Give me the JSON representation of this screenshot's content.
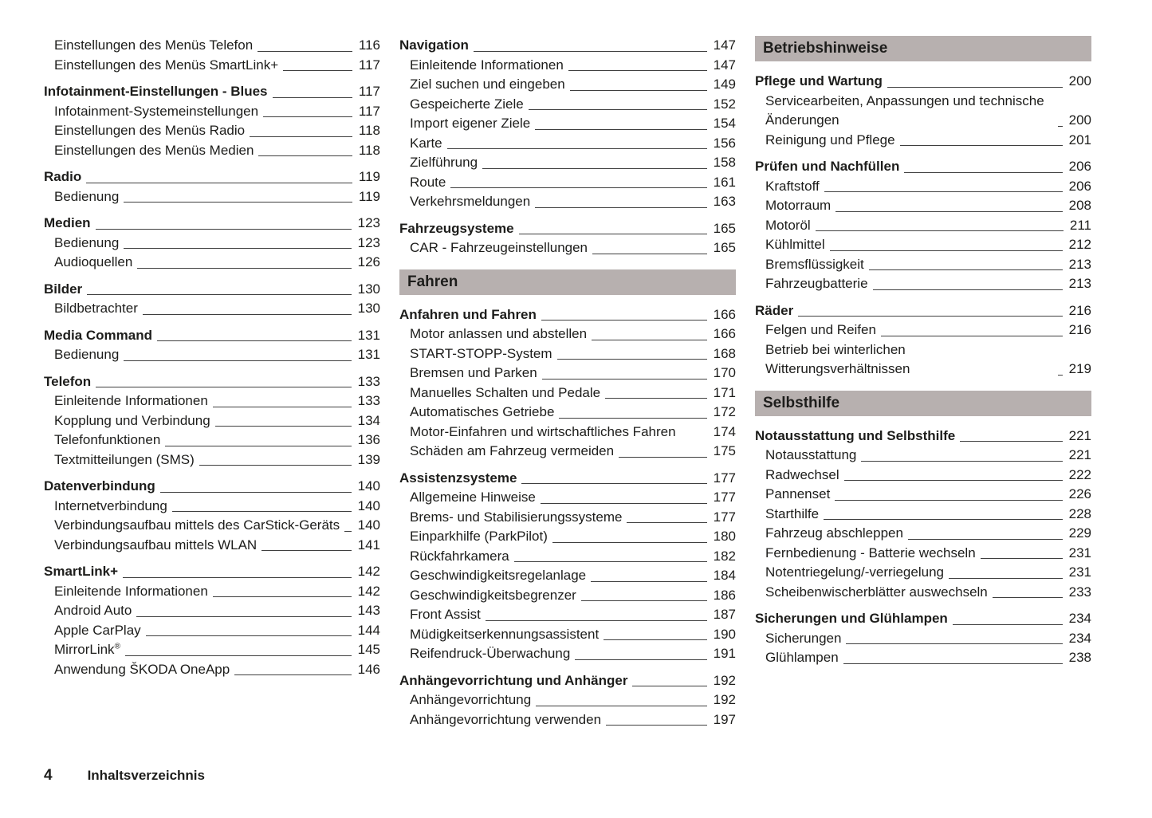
{
  "footer": {
    "page_number": "4",
    "label": "Inhaltsverzeichnis"
  },
  "colors": {
    "part_header_bg": "#b7b0af",
    "text": "#1d1d1b",
    "leader": "#3f3f3f"
  },
  "columns": [
    {
      "blocks": [
        {
          "type": "group",
          "entries": [
            {
              "level": "section",
              "label": "Einstellungen des Menüs Telefon",
              "page": "116"
            },
            {
              "level": "section",
              "label": "Einstellungen des Menüs SmartLink+",
              "page": "117"
            }
          ]
        },
        {
          "type": "group",
          "entries": [
            {
              "level": "chapter",
              "label": "Infotainment-Einstellungen - Blues",
              "page": "117"
            },
            {
              "level": "section",
              "label": "Infotainment-Systemeinstellungen",
              "page": "117"
            },
            {
              "level": "section",
              "label": "Einstellungen des Menüs Radio",
              "page": "118"
            },
            {
              "level": "section",
              "label": "Einstellungen des Menüs Medien",
              "page": "118"
            }
          ]
        },
        {
          "type": "group",
          "entries": [
            {
              "level": "chapter",
              "label": "Radio",
              "page": "119"
            },
            {
              "level": "section",
              "label": "Bedienung",
              "page": "119"
            }
          ]
        },
        {
          "type": "group",
          "entries": [
            {
              "level": "chapter",
              "label": "Medien",
              "page": "123"
            },
            {
              "level": "section",
              "label": "Bedienung",
              "page": "123"
            },
            {
              "level": "section",
              "label": "Audioquellen",
              "page": "126"
            }
          ]
        },
        {
          "type": "group",
          "entries": [
            {
              "level": "chapter",
              "label": "Bilder",
              "page": "130"
            },
            {
              "level": "section",
              "label": "Bildbetrachter",
              "page": "130"
            }
          ]
        },
        {
          "type": "group",
          "entries": [
            {
              "level": "chapter",
              "label": "Media Command",
              "page": "131"
            },
            {
              "level": "section",
              "label": "Bedienung",
              "page": "131"
            }
          ]
        },
        {
          "type": "group",
          "entries": [
            {
              "level": "chapter",
              "label": "Telefon",
              "page": "133"
            },
            {
              "level": "section",
              "label": "Einleitende Informationen",
              "page": "133"
            },
            {
              "level": "section",
              "label": "Kopplung und Verbindung",
              "page": "134"
            },
            {
              "level": "section",
              "label": "Telefonfunktionen",
              "page": "136"
            },
            {
              "level": "section",
              "label": "Textmitteilungen (SMS)",
              "page": "139"
            }
          ]
        },
        {
          "type": "group",
          "entries": [
            {
              "level": "chapter",
              "label": "Datenverbindung",
              "page": "140"
            },
            {
              "level": "section",
              "label": "Internetverbindung",
              "page": "140"
            },
            {
              "level": "section",
              "label": "Verbindungsaufbau mittels des CarStick-Geräts",
              "page": "140"
            },
            {
              "level": "section",
              "label": "Verbindungsaufbau mittels WLAN",
              "page": "141"
            }
          ]
        },
        {
          "type": "group",
          "entries": [
            {
              "level": "chapter",
              "label": "SmartLink+",
              "page": "142"
            },
            {
              "level": "section",
              "label": "Einleitende Informationen",
              "page": "142"
            },
            {
              "level": "section",
              "label": "Android Auto",
              "page": "143"
            },
            {
              "level": "section",
              "label": "Apple CarPlay",
              "page": "144"
            },
            {
              "level": "section",
              "label": "MirrorLink",
              "sup": "®",
              "page": "145"
            },
            {
              "level": "section",
              "label": "Anwendung ŠKODA OneApp",
              "page": "146"
            }
          ]
        }
      ]
    },
    {
      "blocks": [
        {
          "type": "group",
          "entries": [
            {
              "level": "chapter",
              "label": "Navigation",
              "page": "147"
            },
            {
              "level": "section",
              "label": "Einleitende Informationen",
              "page": "147"
            },
            {
              "level": "section",
              "label": "Ziel suchen und eingeben",
              "page": "149"
            },
            {
              "level": "section",
              "label": "Gespeicherte Ziele",
              "page": "152"
            },
            {
              "level": "section",
              "label": "Import eigener Ziele",
              "page": "154"
            },
            {
              "level": "section",
              "label": "Karte",
              "page": "156"
            },
            {
              "level": "section",
              "label": "Zielführung",
              "page": "158"
            },
            {
              "level": "section",
              "label": "Route",
              "page": "161"
            },
            {
              "level": "section",
              "label": "Verkehrsmeldungen",
              "page": "163"
            }
          ]
        },
        {
          "type": "group",
          "entries": [
            {
              "level": "chapter",
              "label": "Fahrzeugsysteme",
              "page": "165"
            },
            {
              "level": "section",
              "label": "CAR - Fahrzeugeinstellungen",
              "page": "165"
            }
          ]
        },
        {
          "type": "part",
          "label": "Fahren"
        },
        {
          "type": "group",
          "entries": [
            {
              "level": "chapter",
              "label": "Anfahren und Fahren",
              "page": "166"
            },
            {
              "level": "section",
              "label": "Motor anlassen und abstellen",
              "page": "166"
            },
            {
              "level": "section",
              "label": "START-STOPP-System",
              "page": "168"
            },
            {
              "level": "section",
              "label": "Bremsen und Parken",
              "page": "170"
            },
            {
              "level": "section",
              "label": "Manuelles Schalten und Pedale",
              "page": "171"
            },
            {
              "level": "section",
              "label": "Automatisches Getriebe",
              "page": "172"
            },
            {
              "level": "section",
              "label": "Motor-Einfahren und wirtschaftliches Fahren",
              "page": "174",
              "no_leader": true
            },
            {
              "level": "section",
              "label": "Schäden am Fahrzeug vermeiden",
              "page": "175"
            }
          ]
        },
        {
          "type": "group",
          "entries": [
            {
              "level": "chapter",
              "label": "Assistenzsysteme",
              "page": "177"
            },
            {
              "level": "section",
              "label": "Allgemeine Hinweise",
              "page": "177"
            },
            {
              "level": "section",
              "label": "Brems- und Stabilisierungssysteme",
              "page": "177"
            },
            {
              "level": "section",
              "label": "Einparkhilfe (ParkPilot)",
              "page": "180"
            },
            {
              "level": "section",
              "label": "Rückfahrkamera",
              "page": "182"
            },
            {
              "level": "section",
              "label": "Geschwindigkeitsregelanlage",
              "page": "184"
            },
            {
              "level": "section",
              "label": "Geschwindigkeitsbegrenzer",
              "page": "186"
            },
            {
              "level": "section",
              "label": "Front Assist",
              "page": "187"
            },
            {
              "level": "section",
              "label": "Müdigkeitserkennungsassistent",
              "page": "190"
            },
            {
              "level": "section",
              "label": "Reifendruck-Überwachung",
              "page": "191"
            }
          ]
        },
        {
          "type": "group",
          "entries": [
            {
              "level": "chapter",
              "label": "Anhängevorrichtung und Anhänger",
              "page": "192"
            },
            {
              "level": "section",
              "label": "Anhängevorrichtung",
              "page": "192"
            },
            {
              "level": "section",
              "label": "Anhängevorrichtung verwenden",
              "page": "197"
            }
          ]
        }
      ]
    },
    {
      "blocks": [
        {
          "type": "part",
          "label": "Betriebshinweise"
        },
        {
          "type": "group",
          "entries": [
            {
              "level": "chapter",
              "label": "Pflege und Wartung",
              "page": "200"
            },
            {
              "level": "section",
              "label": "Servicearbeiten, Anpassungen und technische Änderungen",
              "page": "200"
            },
            {
              "level": "section",
              "label": "Reinigung und Pflege",
              "page": "201"
            }
          ]
        },
        {
          "type": "group",
          "entries": [
            {
              "level": "chapter",
              "label": "Prüfen und Nachfüllen",
              "page": "206"
            },
            {
              "level": "section",
              "label": "Kraftstoff",
              "page": "206"
            },
            {
              "level": "section",
              "label": "Motorraum",
              "page": "208"
            },
            {
              "level": "section",
              "label": "Motoröl",
              "page": "211"
            },
            {
              "level": "section",
              "label": "Kühlmittel",
              "page": "212"
            },
            {
              "level": "section",
              "label": "Bremsflüssigkeit",
              "page": "213"
            },
            {
              "level": "section",
              "label": "Fahrzeugbatterie",
              "page": "213"
            }
          ]
        },
        {
          "type": "group",
          "entries": [
            {
              "level": "chapter",
              "label": "Räder",
              "page": "216"
            },
            {
              "level": "section",
              "label": "Felgen und Reifen",
              "page": "216"
            },
            {
              "level": "section",
              "label": "Betrieb bei winterlichen Witterungsverhältnissen",
              "page": "219"
            }
          ]
        },
        {
          "type": "part",
          "label": "Selbsthilfe"
        },
        {
          "type": "group",
          "entries": [
            {
              "level": "chapter",
              "label": "Notausstattung und Selbsthilfe",
              "page": "221"
            },
            {
              "level": "section",
              "label": "Notausstattung",
              "page": "221"
            },
            {
              "level": "section",
              "label": "Radwechsel",
              "page": "222"
            },
            {
              "level": "section",
              "label": "Pannenset",
              "page": "226"
            },
            {
              "level": "section",
              "label": "Starthilfe",
              "page": "228"
            },
            {
              "level": "section",
              "label": "Fahrzeug abschleppen",
              "page": "229"
            },
            {
              "level": "section",
              "label": "Fernbedienung - Batterie wechseln",
              "page": "231"
            },
            {
              "level": "section",
              "label": "Notentriegelung/-verriegelung",
              "page": "231"
            },
            {
              "level": "section",
              "label": "Scheibenwischerblätter auswechseln",
              "page": "233"
            }
          ]
        },
        {
          "type": "group",
          "entries": [
            {
              "level": "chapter",
              "label": "Sicherungen und Glühlampen",
              "page": "234"
            },
            {
              "level": "section",
              "label": "Sicherungen",
              "page": "234"
            },
            {
              "level": "section",
              "label": "Glühlampen",
              "page": "238"
            }
          ]
        }
      ]
    }
  ]
}
